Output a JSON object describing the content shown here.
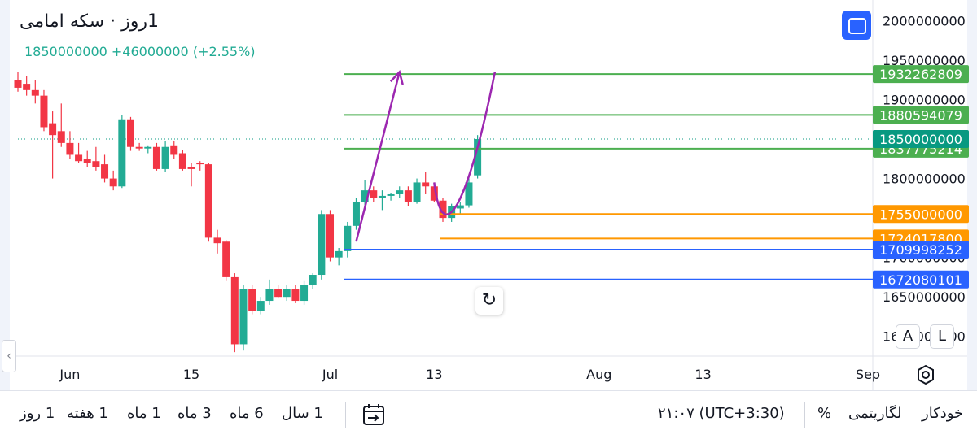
{
  "header": {
    "title": "1روز · سکه امامی",
    "quote_last": "1850000000",
    "quote_change": "+46000000",
    "quote_change_pct": "(+2.55%)"
  },
  "chart_data": {
    "type": "candlestick",
    "up_color": "#22ab94",
    "down_color": "#f23645",
    "y_axis": {
      "side": "right",
      "range": [
        1575000000,
        2020000000
      ],
      "tick_labels": [
        "2000000000",
        "1950000000",
        "1900000000",
        "1850000000",
        "1800000000",
        "1750000000",
        "1700000000",
        "1650000000",
        "1600000000"
      ]
    },
    "x_axis": {
      "range": [
        "2024-05-26",
        "2024-09-01"
      ],
      "tick_labels": [
        {
          "date": "2024-06-01",
          "label": "Jun"
        },
        {
          "date": "2024-06-15",
          "label": "15"
        },
        {
          "date": "2024-07-01",
          "label": "Jul"
        },
        {
          "date": "2024-07-13",
          "label": "13"
        },
        {
          "date": "2024-08-01",
          "label": "Aug"
        },
        {
          "date": "2024-08-13",
          "label": "13"
        },
        {
          "date": "2024-09-01",
          "label": "Sep"
        }
      ]
    },
    "candles": [
      {
        "date": "2024-05-26",
        "o": 1925000000,
        "h": 1935000000,
        "l": 1910000000,
        "c": 1915000000
      },
      {
        "date": "2024-05-27",
        "o": 1920000000,
        "h": 1930000000,
        "l": 1905000000,
        "c": 1912000000
      },
      {
        "date": "2024-05-28",
        "o": 1912000000,
        "h": 1925000000,
        "l": 1895000000,
        "c": 1905000000
      },
      {
        "date": "2024-05-29",
        "o": 1905000000,
        "h": 1912000000,
        "l": 1860000000,
        "c": 1865000000
      },
      {
        "date": "2024-05-30",
        "o": 1870000000,
        "h": 1885000000,
        "l": 1800000000,
        "c": 1855000000
      },
      {
        "date": "2024-05-31",
        "o": 1860000000,
        "h": 1895000000,
        "l": 1840000000,
        "c": 1845000000
      },
      {
        "date": "2024-06-01",
        "o": 1845000000,
        "h": 1860000000,
        "l": 1825000000,
        "c": 1830000000
      },
      {
        "date": "2024-06-02",
        "o": 1830000000,
        "h": 1845000000,
        "l": 1820000000,
        "c": 1822000000
      },
      {
        "date": "2024-06-03",
        "o": 1825000000,
        "h": 1835000000,
        "l": 1815000000,
        "c": 1820000000
      },
      {
        "date": "2024-06-04",
        "o": 1822000000,
        "h": 1840000000,
        "l": 1810000000,
        "c": 1815000000
      },
      {
        "date": "2024-06-05",
        "o": 1818000000,
        "h": 1830000000,
        "l": 1795000000,
        "c": 1800000000
      },
      {
        "date": "2024-06-06",
        "o": 1800000000,
        "h": 1810000000,
        "l": 1785000000,
        "c": 1790000000
      },
      {
        "date": "2024-06-07",
        "o": 1790000000,
        "h": 1880000000,
        "l": 1788000000,
        "c": 1875000000
      },
      {
        "date": "2024-06-08",
        "o": 1875000000,
        "h": 1878000000,
        "l": 1835000000,
        "c": 1840000000
      },
      {
        "date": "2024-06-09",
        "o": 1840000000,
        "h": 1845000000,
        "l": 1835000000,
        "c": 1838000000
      },
      {
        "date": "2024-06-10",
        "o": 1838000000,
        "h": 1842000000,
        "l": 1832000000,
        "c": 1840000000
      },
      {
        "date": "2024-06-11",
        "o": 1840000000,
        "h": 1845000000,
        "l": 1810000000,
        "c": 1812000000
      },
      {
        "date": "2024-06-12",
        "o": 1812000000,
        "h": 1848000000,
        "l": 1808000000,
        "c": 1840000000
      },
      {
        "date": "2024-06-13",
        "o": 1842000000,
        "h": 1848000000,
        "l": 1825000000,
        "c": 1830000000
      },
      {
        "date": "2024-06-14",
        "o": 1832000000,
        "h": 1836000000,
        "l": 1810000000,
        "c": 1812000000
      },
      {
        "date": "2024-06-15",
        "o": 1815000000,
        "h": 1820000000,
        "l": 1790000000,
        "c": 1812000000
      },
      {
        "date": "2024-06-16",
        "o": 1820000000,
        "h": 1822000000,
        "l": 1810000000,
        "c": 1818000000
      },
      {
        "date": "2024-06-17",
        "o": 1818000000,
        "h": 1820000000,
        "l": 1720000000,
        "c": 1725000000
      },
      {
        "date": "2024-06-18",
        "o": 1725000000,
        "h": 1735000000,
        "l": 1705000000,
        "c": 1718000000
      },
      {
        "date": "2024-06-19",
        "o": 1720000000,
        "h": 1722000000,
        "l": 1670000000,
        "c": 1675000000
      },
      {
        "date": "2024-06-20",
        "o": 1675000000,
        "h": 1680000000,
        "l": 1580000000,
        "c": 1590000000
      },
      {
        "date": "2024-06-21",
        "o": 1590000000,
        "h": 1665000000,
        "l": 1582000000,
        "c": 1660000000
      },
      {
        "date": "2024-06-22",
        "o": 1660000000,
        "h": 1665000000,
        "l": 1628000000,
        "c": 1632000000
      },
      {
        "date": "2024-06-23",
        "o": 1632000000,
        "h": 1650000000,
        "l": 1628000000,
        "c": 1645000000
      },
      {
        "date": "2024-06-24",
        "o": 1645000000,
        "h": 1672000000,
        "l": 1640000000,
        "c": 1660000000
      },
      {
        "date": "2024-06-25",
        "o": 1660000000,
        "h": 1665000000,
        "l": 1648000000,
        "c": 1650000000
      },
      {
        "date": "2024-06-26",
        "o": 1650000000,
        "h": 1665000000,
        "l": 1645000000,
        "c": 1660000000
      },
      {
        "date": "2024-06-27",
        "o": 1660000000,
        "h": 1665000000,
        "l": 1642000000,
        "c": 1645000000
      },
      {
        "date": "2024-06-28",
        "o": 1645000000,
        "h": 1670000000,
        "l": 1640000000,
        "c": 1665000000
      },
      {
        "date": "2024-06-29",
        "o": 1665000000,
        "h": 1680000000,
        "l": 1660000000,
        "c": 1678000000
      },
      {
        "date": "2024-06-30",
        "o": 1678000000,
        "h": 1760000000,
        "l": 1672000000,
        "c": 1755000000
      },
      {
        "date": "2024-07-01",
        "o": 1755000000,
        "h": 1760000000,
        "l": 1695000000,
        "c": 1700000000
      },
      {
        "date": "2024-07-02",
        "o": 1700000000,
        "h": 1712000000,
        "l": 1690000000,
        "c": 1708000000
      },
      {
        "date": "2024-07-03",
        "o": 1708000000,
        "h": 1745000000,
        "l": 1700000000,
        "c": 1740000000
      },
      {
        "date": "2024-07-04",
        "o": 1740000000,
        "h": 1775000000,
        "l": 1735000000,
        "c": 1770000000
      },
      {
        "date": "2024-07-05",
        "o": 1770000000,
        "h": 1798000000,
        "l": 1762000000,
        "c": 1785000000
      },
      {
        "date": "2024-07-06",
        "o": 1785000000,
        "h": 1790000000,
        "l": 1770000000,
        "c": 1775000000
      },
      {
        "date": "2024-07-07",
        "o": 1775000000,
        "h": 1785000000,
        "l": 1760000000,
        "c": 1778000000
      },
      {
        "date": "2024-07-08",
        "o": 1778000000,
        "h": 1782000000,
        "l": 1772000000,
        "c": 1780000000
      },
      {
        "date": "2024-07-09",
        "o": 1780000000,
        "h": 1790000000,
        "l": 1775000000,
        "c": 1785000000
      },
      {
        "date": "2024-07-10",
        "o": 1785000000,
        "h": 1790000000,
        "l": 1765000000,
        "c": 1770000000
      },
      {
        "date": "2024-07-11",
        "o": 1770000000,
        "h": 1800000000,
        "l": 1768000000,
        "c": 1795000000
      },
      {
        "date": "2024-07-12",
        "o": 1795000000,
        "h": 1808000000,
        "l": 1780000000,
        "c": 1790000000
      },
      {
        "date": "2024-07-13",
        "o": 1790000000,
        "h": 1795000000,
        "l": 1770000000,
        "c": 1772000000
      },
      {
        "date": "2024-07-14",
        "o": 1772000000,
        "h": 1775000000,
        "l": 1745000000,
        "c": 1750000000
      },
      {
        "date": "2024-07-15",
        "o": 1750000000,
        "h": 1768000000,
        "l": 1745000000,
        "c": 1765000000
      },
      {
        "date": "2024-07-16",
        "o": 1762000000,
        "h": 1770000000,
        "l": 1755000000,
        "c": 1766000000
      },
      {
        "date": "2024-07-17",
        "o": 1766000000,
        "h": 1800000000,
        "l": 1763000000,
        "c": 1795000000
      },
      {
        "date": "2024-07-18",
        "o": 1804000000,
        "h": 1855000000,
        "l": 1800000000,
        "c": 1850000000
      }
    ],
    "price_lines": [
      {
        "value": 1932262809,
        "label": "1932262809",
        "color": "#4caf50"
      },
      {
        "value": 1880594079,
        "label": "1880594079",
        "color": "#4caf50"
      },
      {
        "value": 1837775214,
        "label": "1837775214",
        "color": "#4caf50"
      },
      {
        "value": 1755000000,
        "label": "1755000000",
        "color": "#ff9800"
      },
      {
        "value": 1724017800,
        "label": "1724017800",
        "color": "#ff9800"
      },
      {
        "value": 1709998252,
        "label": "1709998252",
        "color": "#2962ff"
      },
      {
        "value": 1672080101,
        "label": "1672080101",
        "color": "#2962ff"
      }
    ],
    "last_price": {
      "value": 1850000000,
      "label": "1850000000",
      "color": "#089981"
    },
    "annotations": [
      {
        "type": "arrow",
        "color": "#9c27b0",
        "from": {
          "date": "2024-07-04",
          "value": 1720000000
        },
        "to": {
          "date": "2024-07-09",
          "value": 1935000000
        }
      },
      {
        "type": "curve",
        "color": "#9c27b0",
        "points": [
          {
            "date": "2024-07-13",
            "value": 1795000000
          },
          {
            "date": "2024-07-14",
            "value": 1705000000
          },
          {
            "date": "2024-07-17",
            "value": 1770000000
          },
          {
            "date": "2024-07-20",
            "value": 1935000000
          }
        ]
      }
    ]
  },
  "controls": {
    "reset_glyph": "↻",
    "scale_a": "A",
    "scale_l": "L"
  },
  "bottom_bar": {
    "ranges": [
      "1 روز",
      "1 هفته",
      "1 ماه",
      "3 ماه",
      "6 ماه",
      "1 سال"
    ],
    "time": "۲۱:۰۷ (UTC+3:30)",
    "percent": "%",
    "log": "لگاریتمی",
    "auto": "خودکار"
  }
}
